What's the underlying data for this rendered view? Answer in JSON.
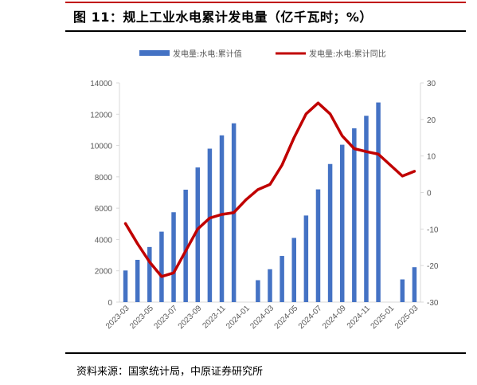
{
  "title": "图 11：规上工业水电累计发电量（亿千瓦时；%）",
  "source": "资料来源：国家统计局，中原证券研究所",
  "colors": {
    "bar": "#4472c4",
    "line": "#c00000",
    "axis": "#d9d9d9",
    "tick": "#595959",
    "rule_red": "#c00000"
  },
  "chart_data": {
    "type": "bar",
    "title": "",
    "categories": [
      "2023-03",
      "2023-04",
      "2023-05",
      "2023-06",
      "2023-07",
      "2023-08",
      "2023-09",
      "2023-10",
      "2023-11",
      "2023-12",
      "2024-01",
      "2024-02",
      "2024-03",
      "2024-04",
      "2024-05",
      "2024-06",
      "2024-07",
      "2024-08",
      "2024-09",
      "2024-10",
      "2024-11",
      "2024-12",
      "2025-01",
      "2025-02",
      "2025-03"
    ],
    "x_tick_labels": [
      "2023-03",
      "2023-05",
      "2023-07",
      "2023-09",
      "2023-11",
      "2024-01",
      "2024-03",
      "2024-05",
      "2024-07",
      "2024-09",
      "2024-11",
      "2025-01",
      "2025-03"
    ],
    "series": [
      {
        "name": "发电量:水电:累计值",
        "type": "bar",
        "axis": "left",
        "values": [
          2020,
          2700,
          3520,
          4500,
          5740,
          7180,
          8600,
          9800,
          10650,
          11420,
          null,
          1400,
          2100,
          2950,
          4100,
          5530,
          7200,
          8820,
          10050,
          11100,
          11900,
          12750,
          null,
          1450,
          2230
        ]
      },
      {
        "name": "发电量:水电:累计同比",
        "type": "line",
        "axis": "right",
        "values": [
          -8.5,
          -14.0,
          -19.0,
          -23.0,
          -22.0,
          -16.0,
          -10.0,
          -7.0,
          -6.0,
          -5.5,
          -2.0,
          0.8,
          2.2,
          7.5,
          15.0,
          21.5,
          24.5,
          21.5,
          15.5,
          12.0,
          11.2,
          10.5,
          7.5,
          4.5,
          5.8
        ]
      }
    ],
    "y_left": {
      "lim": [
        0,
        14000
      ],
      "ticks": [
        0,
        2000,
        4000,
        6000,
        8000,
        10000,
        12000,
        14000
      ]
    },
    "y_right": {
      "lim": [
        -30,
        30
      ],
      "ticks": [
        -30,
        -20,
        -10,
        0,
        10,
        20,
        30
      ]
    },
    "legend_position": "top",
    "grid": false
  }
}
